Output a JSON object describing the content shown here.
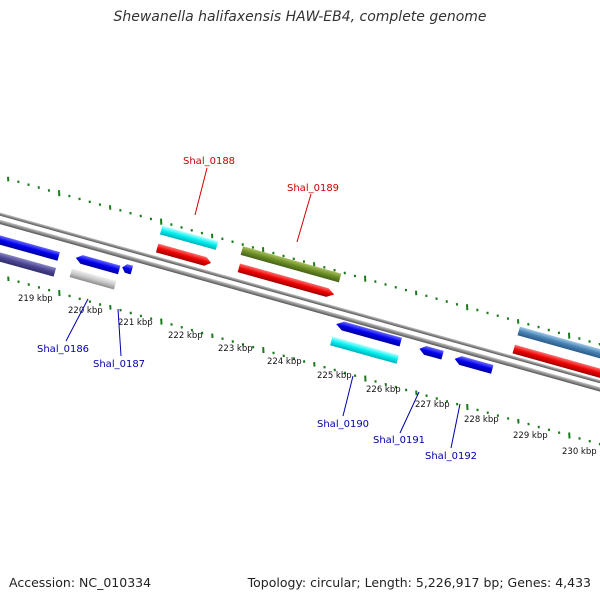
{
  "title": "Shewanella halifaxensis HAW-EB4, complete genome",
  "footer": {
    "accession": "Accession: NC_010334",
    "summary": "Topology: circular; Length: 5,226,917 bp; Genes: 4,433"
  },
  "colors": {
    "backbone": "#8a8a8a",
    "ticks": "#1a7a1a",
    "label_top": "#cc0000",
    "label_bottom": "#0000aa"
  },
  "scale_labels": [
    "219 kbp",
    "220 kbp",
    "221 kbp",
    "222 kbp",
    "223 kbp",
    "224 kbp",
    "225 kbp",
    "226 kbp",
    "227 kbp",
    "228 kbp",
    "229 kbp",
    "230 kbp"
  ],
  "gene_labels": {
    "top": [
      "Shal_0188",
      "Shal_0189"
    ],
    "bottom": [
      "Shal_0186",
      "Shal_0187",
      "Shal_0190",
      "Shal_0191",
      "Shal_0192"
    ]
  }
}
